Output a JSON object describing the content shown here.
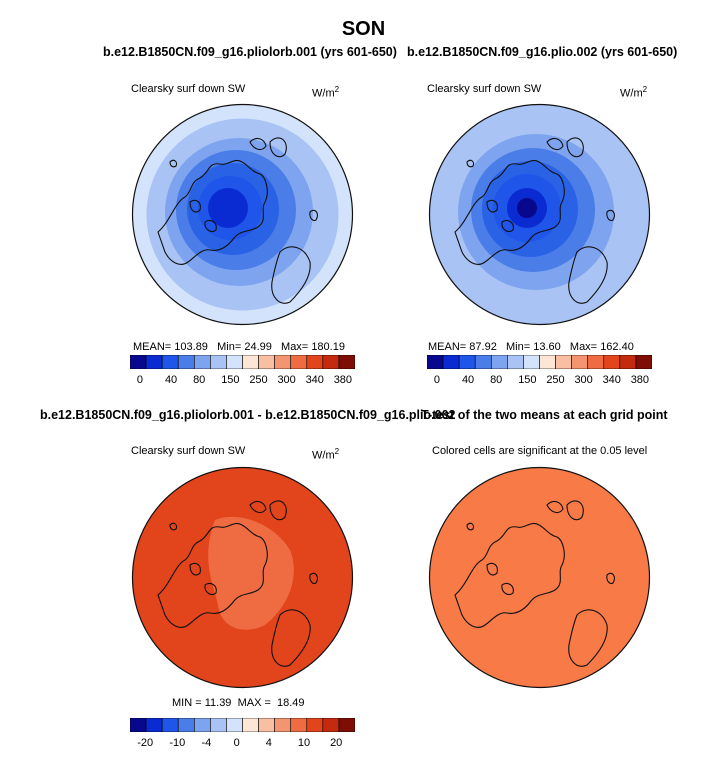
{
  "title": "SON",
  "panels": [
    {
      "title": "b.e12.B1850CN.f09_g16.pliolorb.001 (yrs 601-650)",
      "variable": "Clearsky surf down SW",
      "units": "W/m",
      "units_sup": "2",
      "stats": {
        "mean_label": "MEAN=",
        "mean": "103.89",
        "min_label": "Min=",
        "min": "24.99",
        "max_label": "Max=",
        "max": "180.19"
      },
      "colorbar": {
        "labels": [
          "0",
          "40",
          "80",
          "150",
          "250",
          "300",
          "340",
          "380"
        ]
      }
    },
    {
      "title": "b.e12.B1850CN.f09_g16.plio.002 (yrs 601-650)",
      "variable": "Clearsky surf down SW",
      "units": "W/m",
      "units_sup": "2",
      "stats": {
        "mean_label": "MEAN=",
        "mean": "87.92",
        "min_label": "Min=",
        "min": "13.60",
        "max_label": "Max=",
        "max": "162.40"
      },
      "colorbar": {
        "labels": [
          "0",
          "40",
          "80",
          "150",
          "250",
          "300",
          "340",
          "380"
        ]
      }
    },
    {
      "title": "b.e12.B1850CN.f09_g16.pliolorb.001 - b.e12.B1850CN.f09_g16.plio.002",
      "variable": "Clearsky surf down SW",
      "units": "W/m",
      "units_sup": "2",
      "stats": {
        "min_label": "MIN =",
        "min": "11.39",
        "max_label": "MAX =",
        "max": "18.49"
      },
      "colorbar": {
        "labels": [
          "-20",
          "-10",
          "-4",
          "0",
          "4",
          "10",
          "20"
        ]
      }
    },
    {
      "title": "T-test of the two means at each grid point",
      "note": "Colored cells are significant at the 0.05 level"
    }
  ],
  "colors": {
    "seq": [
      "#08088f",
      "#0a2bd2",
      "#1f55e8",
      "#4a7de8",
      "#7ea3ef",
      "#a9c4f4",
      "#d3e3fb",
      "#fde6d6",
      "#f8bfa2",
      "#f39570",
      "#ef6c43",
      "#e2441c",
      "#c42a0e",
      "#7e0d05"
    ],
    "diff": [
      "#08088f",
      "#0a2bd2",
      "#1f55e8",
      "#4a7de8",
      "#7ea3ef",
      "#a9c4f4",
      "#d3e3fb",
      "#fde6d6",
      "#f8bfa2",
      "#f39570",
      "#ef6c43",
      "#e2441c",
      "#c42a0e",
      "#7e0d05"
    ],
    "ttest_fill": "#f77a47",
    "coast": "#111111"
  }
}
